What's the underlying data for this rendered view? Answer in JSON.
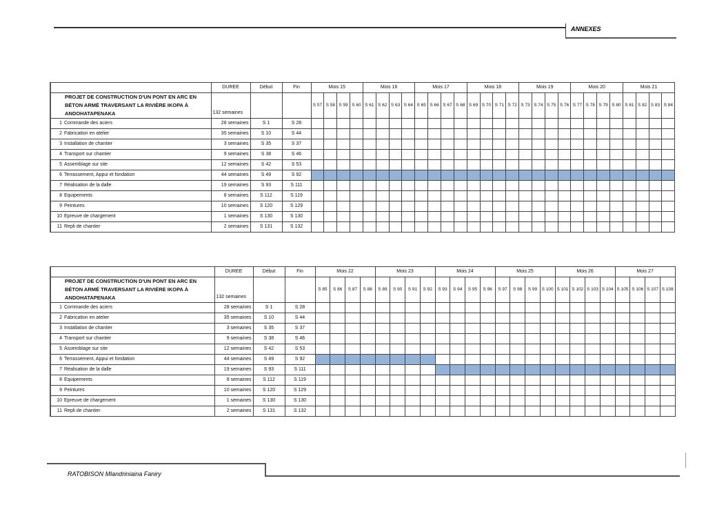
{
  "header": {
    "title": "ANNEXES"
  },
  "footer": {
    "author": "RATOBISON Mlandriniaina Faniry"
  },
  "tables": [
    {
      "columns": {
        "duration": "DUREE",
        "start": "Début",
        "end": "Fin"
      },
      "project_title": "PROJET DE CONSTRUCTION D'UN PONT EN ARC EN BÉTON ARMÉ TRAVERSANT LA RIVIÈRE IKOPA À ANDOHATAPENAKA",
      "total_duration": "132 semaines",
      "months": [
        "Mois 15",
        "Mois 16",
        "Mois 17",
        "Mois 18",
        "Mois 19",
        "Mois 20",
        "Mois 21"
      ],
      "weeks": [
        "S 57",
        "S 58",
        "S 59",
        "S 60",
        "S 61",
        "S 62",
        "S 63",
        "S 64",
        "S 65",
        "S 66",
        "S 67",
        "S 68",
        "S 69",
        "S 70",
        "S 71",
        "S 72",
        "S 73",
        "S 74",
        "S 75",
        "S 76",
        "S 77",
        "S 78",
        "S 79",
        "S 80",
        "S 81",
        "S 82",
        "S 83",
        "S 84"
      ],
      "rows": [
        [
          "1",
          "Commande des aciers",
          "28 semaines",
          "S 1",
          "S 28"
        ],
        [
          "2",
          "Fabrication en atelier",
          "35 semaines",
          "S 10",
          "S 44"
        ],
        [
          "3",
          "Installation de chantier",
          "3 semaines",
          "S 35",
          "S 37"
        ],
        [
          "4",
          "Transport sur chantier",
          "9 semaines",
          "S 38",
          "S 46"
        ],
        [
          "5",
          "Assemblage sur site",
          "12 semaines",
          "S 42",
          "S 53"
        ],
        [
          "6",
          "Terrassement, Appui et fondation",
          "44 semaines",
          "S 49",
          "S 92"
        ],
        [
          "7",
          "Réalisation de la dalle",
          "19 semaines",
          "S 93",
          "S 111"
        ],
        [
          "8",
          "Equipements",
          "8 semaines",
          "S 112",
          "S 119"
        ],
        [
          "9",
          "Peintures",
          "10 semaines",
          "S 120",
          "S 129"
        ],
        [
          "10",
          "Epreuve de chargement",
          "1 semaines",
          "S 130",
          "S 130"
        ],
        [
          "11",
          "Repli de chantier",
          "2 semaines",
          "S 131",
          "S 132"
        ]
      ]
    },
    {
      "columns": {
        "duration": "DUREE",
        "start": "Début",
        "end": "Fin"
      },
      "project_title": "PROJET DE CONSTRUCTION D'UN PONT EN ARC EN BÉTON ARMÉ TRAVERSANT LA RIVIÈRE IKOPA À ANDOHATAPENAKA",
      "total_duration": "132 semaines",
      "months": [
        "Mois 22",
        "Mois 23",
        "Mois 24",
        "Mois 25",
        "Mois 26",
        "Mois 27"
      ],
      "weeks": [
        "S 85",
        "S 86",
        "S 87",
        "S 88",
        "S 89",
        "S 90",
        "S 91",
        "S 92",
        "S 93",
        "S 94",
        "S 95",
        "S 96",
        "S 97",
        "S 98",
        "S 99",
        "S 100",
        "S 101",
        "S 102",
        "S 103",
        "S 104",
        "S 105",
        "S 106",
        "S 107",
        "S 108"
      ],
      "rows": [
        [
          "1",
          "Commande des aciers",
          "28 semaines",
          "S 1",
          "S 28"
        ],
        [
          "2",
          "Fabrication en atelier",
          "35 semaines",
          "S 10",
          "S 44"
        ],
        [
          "3",
          "Installation de chantier",
          "3 semaines",
          "S 35",
          "S 37"
        ],
        [
          "4",
          "Transport sur chantier",
          "9 semaines",
          "S 38",
          "S 46"
        ],
        [
          "5",
          "Assemblage sur site",
          "12 semaines",
          "S 42",
          "S 53"
        ],
        [
          "6",
          "Terrassement, Appui et fondation",
          "44 semaines",
          "S 49",
          "S 92"
        ],
        [
          "7",
          "Réalisation de la dalle",
          "19 semaines",
          "S 93",
          "S 111"
        ],
        [
          "8",
          "Equipements",
          "8 semaines",
          "S 112",
          "S 119"
        ],
        [
          "9",
          "Peintures",
          "10 semaines",
          "S 120",
          "S 129"
        ],
        [
          "10",
          "Epreuve de chargement",
          "1 semaines",
          "S 130",
          "S 130"
        ],
        [
          "11",
          "Repli de chantier",
          "2 semaines",
          "S 131",
          "S 132"
        ]
      ]
    }
  ]
}
